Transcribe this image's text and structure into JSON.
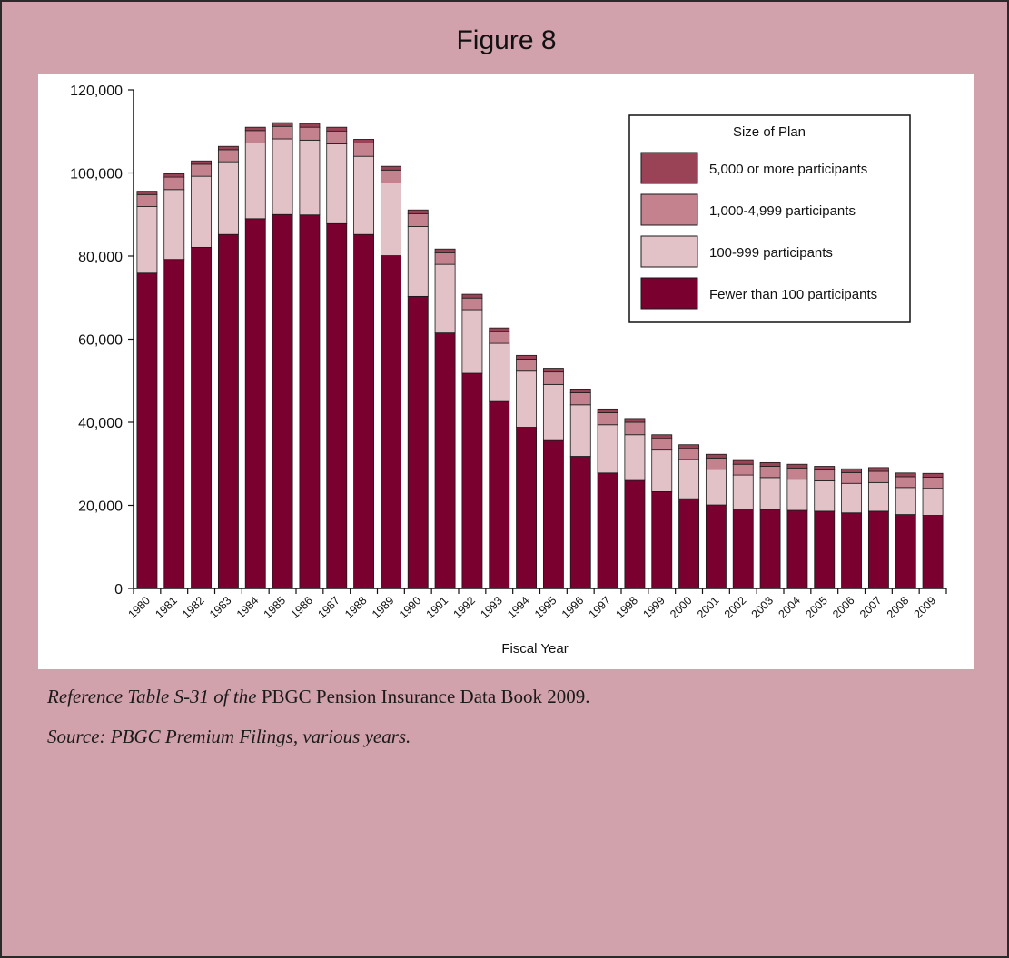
{
  "figure_title": "Figure 8",
  "chart_data": {
    "type": "bar",
    "stacked": true,
    "title": "",
    "xlabel": "Fiscal Year",
    "ylabel": "",
    "ylim": [
      0,
      120000
    ],
    "y_ticks": [
      0,
      20000,
      40000,
      60000,
      80000,
      100000,
      120000
    ],
    "y_tick_labels": [
      "0",
      "20,000",
      "40,000",
      "60,000",
      "80,000",
      "100,000",
      "120,000"
    ],
    "grid": false,
    "legend": {
      "title": "Size of Plan",
      "position": "top-right"
    },
    "categories": [
      "1980",
      "1981",
      "1982",
      "1983",
      "1984",
      "1985",
      "1986",
      "1987",
      "1988",
      "1989",
      "1990",
      "1991",
      "1992",
      "1993",
      "1994",
      "1995",
      "1996",
      "1997",
      "1998",
      "1999",
      "2000",
      "2001",
      "2002",
      "2003",
      "2004",
      "2005",
      "2006",
      "2007",
      "2008",
      "2009"
    ],
    "series": [
      {
        "name": "Fewer than 100 participants",
        "color": "#7a0030",
        "values": [
          75900,
          79200,
          82100,
          85200,
          89000,
          90000,
          89900,
          87800,
          85200,
          80100,
          70300,
          61500,
          51800,
          45000,
          38800,
          35600,
          31800,
          27800,
          26000,
          23300,
          21600,
          20100,
          19100,
          19000,
          18800,
          18600,
          18200,
          18600,
          17800,
          17600
        ]
      },
      {
        "name": "100-999 participants",
        "color": "#e2c2c7",
        "values": [
          16000,
          16800,
          17100,
          17500,
          18200,
          18200,
          18000,
          19200,
          18800,
          17500,
          16800,
          16500,
          15300,
          14000,
          13500,
          13500,
          12400,
          11600,
          11000,
          10000,
          9400,
          8600,
          8200,
          7700,
          7500,
          7300,
          7100,
          6900,
          6500,
          6500
        ]
      },
      {
        "name": "1,000-4,999 participants",
        "color": "#c3828e",
        "values": [
          2900,
          3000,
          2900,
          2900,
          3000,
          3000,
          3100,
          3100,
          3200,
          3100,
          3100,
          2800,
          2800,
          2800,
          2900,
          3000,
          2900,
          2900,
          3000,
          2800,
          2700,
          2700,
          2600,
          2700,
          2700,
          2600,
          2600,
          2700,
          2600,
          2700
        ]
      },
      {
        "name": "5,000 or more participants",
        "color": "#9b4356",
        "values": [
          800,
          800,
          800,
          800,
          800,
          900,
          900,
          900,
          900,
          900,
          900,
          900,
          900,
          900,
          900,
          900,
          900,
          900,
          900,
          900,
          900,
          900,
          900,
          900,
          900,
          900,
          900,
          900,
          900,
          900
        ]
      }
    ]
  },
  "notes": {
    "line1_italic": "Reference Table S-31 of the ",
    "line1_regular": "PBGC Pension Insurance Data Book 2009.",
    "line2": "Source: PBGC Premium Filings, various years."
  }
}
